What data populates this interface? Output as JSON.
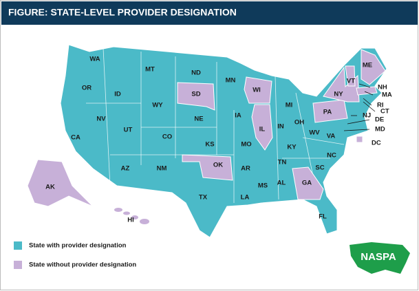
{
  "header": {
    "title": "FIGURE: STATE-LEVEL PROVIDER DESIGNATION"
  },
  "legend": [
    {
      "label": "State with provider designation",
      "color": "#4bbac8",
      "states": [
        "WA",
        "OR",
        "CA",
        "NV",
        "ID",
        "MT",
        "WY",
        "UT",
        "AZ",
        "NM",
        "CO",
        "ND",
        "NE",
        "KS",
        "TX",
        "MN",
        "IA",
        "MO",
        "AR",
        "LA",
        "MS",
        "MI",
        "IN",
        "OH",
        "KY",
        "TN",
        "AL",
        "FL",
        "SC",
        "NC",
        "VA",
        "WV",
        "NH",
        "RI",
        "CT",
        "NJ",
        "DE",
        "MD"
      ]
    },
    {
      "label": "State without provider designation",
      "color": "#c7b0d8",
      "states": [
        "SD",
        "OK",
        "WI",
        "IL",
        "GA",
        "PA",
        "NY",
        "VT",
        "ME",
        "MA",
        "DC",
        "AK",
        "HI"
      ]
    }
  ],
  "logo": {
    "text": "NASPA"
  }
}
